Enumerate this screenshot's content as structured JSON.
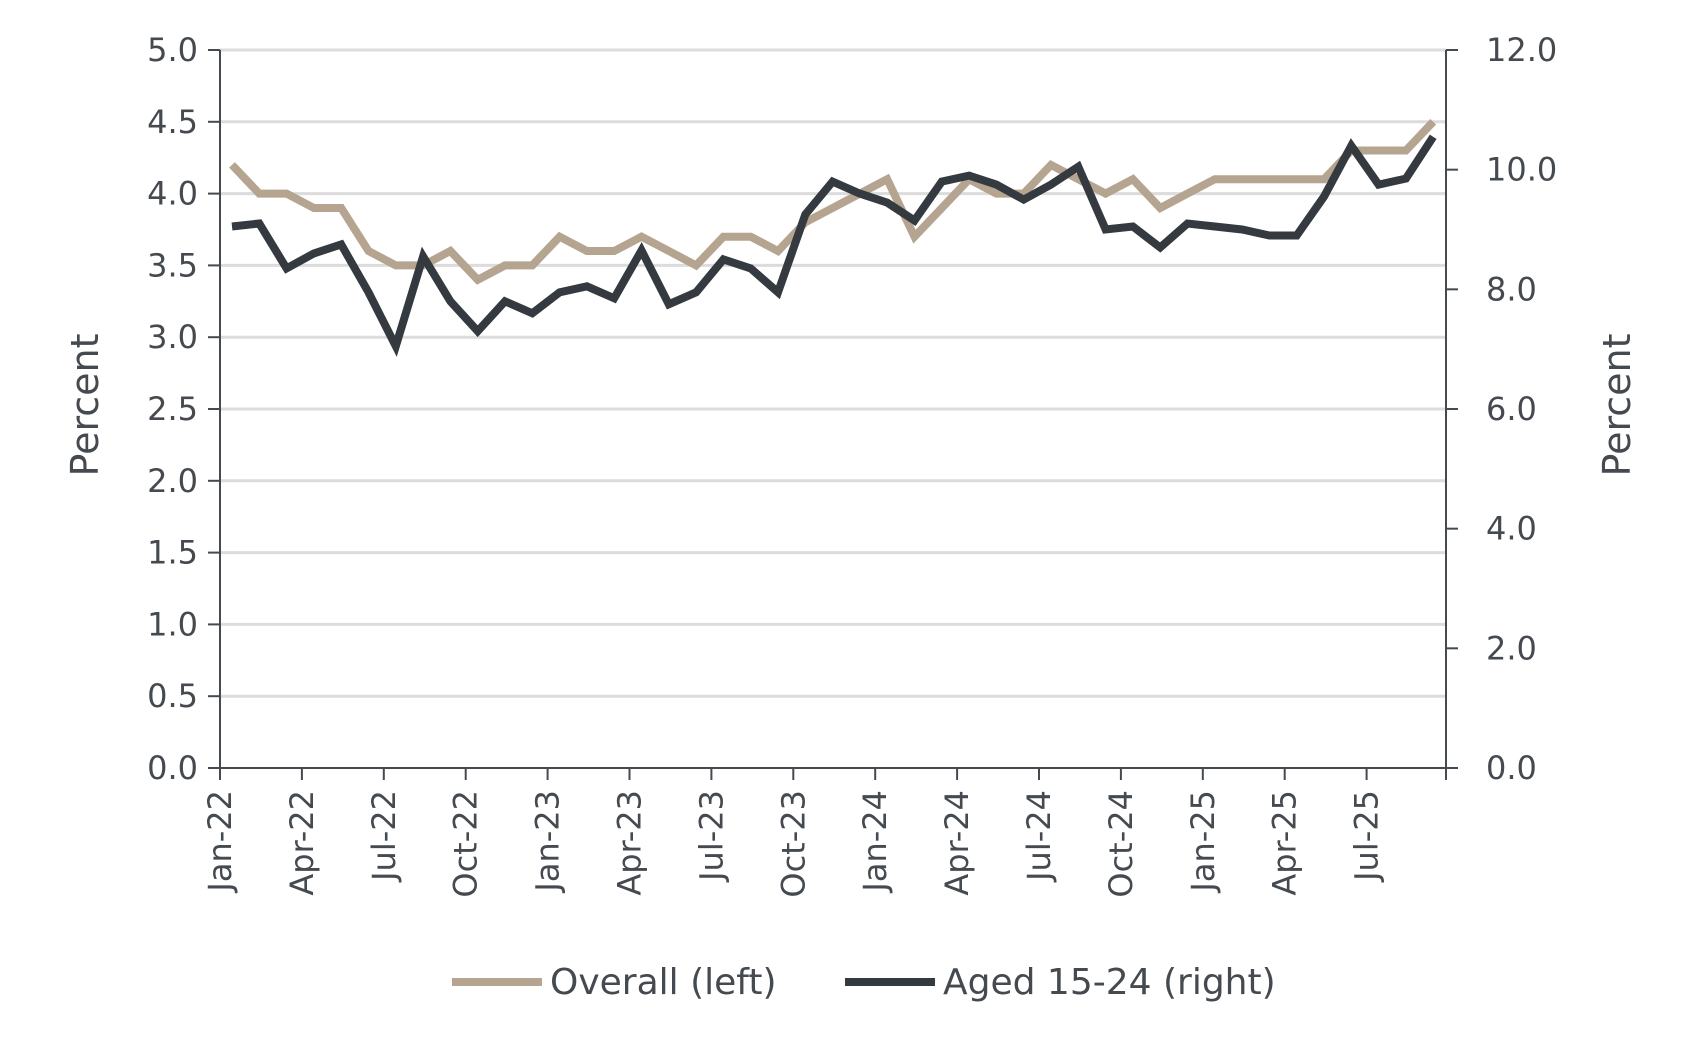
{
  "chart_data": {
    "type": "line",
    "x": [
      "Jan-22",
      "Feb-22",
      "Mar-22",
      "Apr-22",
      "May-22",
      "Jun-22",
      "Jul-22",
      "Aug-22",
      "Sep-22",
      "Oct-22",
      "Nov-22",
      "Dec-22",
      "Jan-23",
      "Feb-23",
      "Mar-23",
      "Apr-23",
      "May-23",
      "Jun-23",
      "Jul-23",
      "Aug-23",
      "Sep-23",
      "Oct-23",
      "Nov-23",
      "Dec-23",
      "Jan-24",
      "Feb-24",
      "Mar-24",
      "Apr-24",
      "May-24",
      "Jun-24",
      "Jul-24",
      "Aug-24",
      "Sep-24",
      "Oct-24",
      "Nov-24",
      "Dec-24",
      "Jan-25",
      "Feb-25",
      "Mar-25",
      "Apr-25",
      "May-25",
      "Jun-25",
      "Jul-25",
      "Aug-25",
      "Sep-25"
    ],
    "x_tick_labels": [
      "Jan-22",
      "Apr-22",
      "Jul-22",
      "Oct-22",
      "Jan-23",
      "Apr-23",
      "Jul-23",
      "Oct-23",
      "Jan-24",
      "Apr-24",
      "Jul-24",
      "Oct-24",
      "Jan-25",
      "Apr-25",
      "Jul-25"
    ],
    "series": [
      {
        "name": "Overall (left)",
        "axis": "left",
        "color": "#b5a48f",
        "values": [
          4.2,
          4.0,
          4.0,
          3.9,
          3.9,
          3.6,
          3.5,
          3.5,
          3.6,
          3.4,
          3.5,
          3.5,
          3.7,
          3.6,
          3.6,
          3.7,
          3.6,
          3.5,
          3.7,
          3.7,
          3.6,
          3.8,
          3.9,
          4.0,
          4.1,
          3.7,
          3.9,
          4.1,
          4.0,
          4.0,
          4.2,
          4.1,
          4.0,
          4.1,
          3.9,
          4.0,
          4.1,
          4.1,
          4.1,
          4.1,
          4.1,
          4.3,
          4.3,
          4.3,
          4.5
        ]
      },
      {
        "name": "Aged 15-24 (right)",
        "axis": "right",
        "color": "#343a40",
        "values": [
          9.05,
          9.1,
          8.35,
          8.6,
          8.75,
          7.95,
          7.05,
          8.55,
          7.8,
          7.3,
          7.8,
          7.6,
          7.95,
          8.05,
          7.85,
          8.65,
          7.75,
          7.95,
          8.5,
          8.35,
          7.95,
          9.25,
          9.8,
          9.6,
          9.45,
          9.15,
          9.8,
          9.9,
          9.75,
          9.5,
          9.75,
          10.05,
          9.0,
          9.05,
          8.7,
          9.1,
          9.05,
          9.0,
          8.9,
          8.9,
          9.55,
          10.4,
          9.75,
          9.85,
          10.55
        ]
      }
    ],
    "y_left": {
      "label": "Percent",
      "ylim": [
        0,
        5.0
      ],
      "ticks": [
        "0.0",
        "0.5",
        "1.0",
        "1.5",
        "2.0",
        "2.5",
        "3.0",
        "3.5",
        "4.0",
        "4.5",
        "5.0"
      ]
    },
    "y_right": {
      "label": "Percent",
      "ylim": [
        0,
        12.0
      ],
      "ticks": [
        "0.0",
        "2.0",
        "4.0",
        "6.0",
        "8.0",
        "10.0",
        "12.0"
      ]
    },
    "grid": true,
    "legend": {
      "position": "bottom-center",
      "entries": [
        "Overall (left)",
        "Aged 15-24 (right)"
      ]
    }
  }
}
